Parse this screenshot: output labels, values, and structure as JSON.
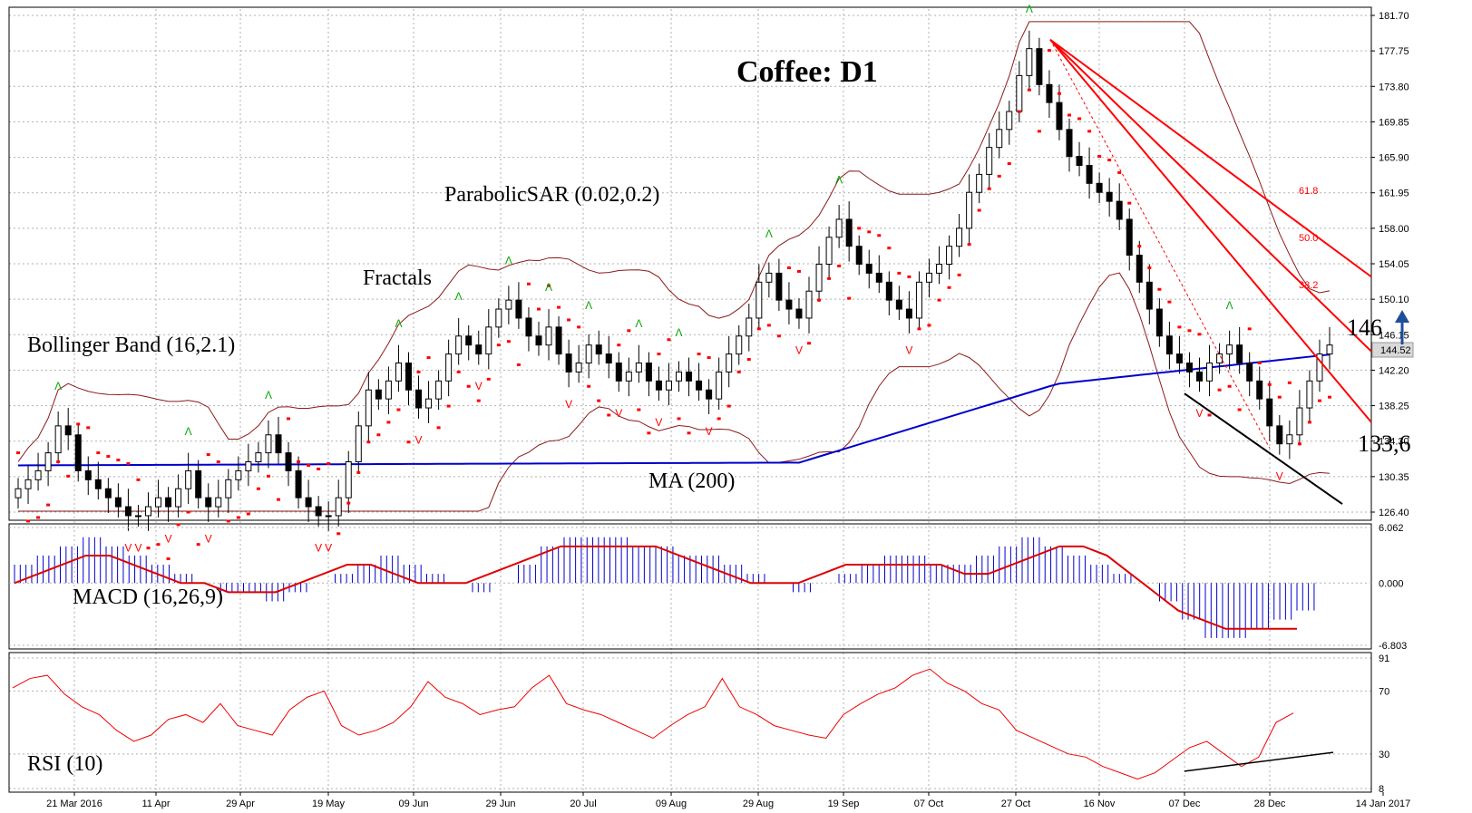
{
  "chart_data": [
    {
      "type": "candlestick",
      "title": "Coffee: D1",
      "instrument": "Coffee",
      "timeframe": "D1",
      "y_ticks": [
        "181.70",
        "177.75",
        "173.80",
        "169.85",
        "165.90",
        "161.95",
        "158.00",
        "154.05",
        "150.10",
        "146.15",
        "142.20",
        "138.25",
        "134.30",
        "130.35",
        "126.40"
      ],
      "ylim": [
        126.4,
        181.7
      ],
      "x_ticks": [
        "21 Mar 2016",
        "11 Apr",
        "29 Apr",
        "19 May",
        "09 Jun",
        "29 Jun",
        "20 Jul",
        "09 Aug",
        "29 Aug",
        "19 Sep",
        "07 Oct",
        "27 Oct",
        "16 Nov",
        "07 Dec",
        "28 Dec",
        "14 Jan 2017"
      ],
      "current_price_label": "144.52",
      "current_price": 144.52,
      "grid": true,
      "annotations": {
        "bollinger": "Bollinger Band (16,2.1)",
        "fractals": "Fractals",
        "sar": "ParabolicSAR (0.02,0.2)",
        "ma": "MA (200)",
        "level_146": "146",
        "level_133": "133,6"
      },
      "fibonacci_labels": [
        "61.8",
        "50.0",
        "38.2"
      ],
      "colors": {
        "ma": "#0000cc",
        "bollinger": "#8b1a1a",
        "sar": "#ff0000",
        "fractal_up": "#00aa00",
        "fractal_down": "#ff0000",
        "trendline": "#ff0000",
        "support": "#000000",
        "arrow": "#1f4e9a"
      },
      "close_approx": [
        129,
        130,
        131,
        133,
        136,
        135,
        131,
        130,
        129,
        128,
        127,
        126,
        126,
        127,
        128,
        127,
        129,
        131,
        128,
        127,
        128,
        130,
        131,
        132,
        133,
        135,
        133,
        131,
        128,
        127,
        126,
        126,
        128,
        132,
        136,
        140,
        139,
        141,
        143,
        140,
        138,
        139,
        141,
        144,
        146,
        145,
        144,
        147,
        149,
        150,
        148,
        146,
        145,
        147,
        144,
        142,
        143,
        145,
        144,
        143,
        141,
        142,
        143,
        141,
        140,
        141,
        142,
        141,
        140,
        139,
        142,
        144,
        146,
        148,
        152,
        153,
        150,
        149,
        148,
        151,
        154,
        157,
        159,
        156,
        154,
        153,
        152,
        150,
        149,
        148,
        152,
        153,
        154,
        156,
        158,
        162,
        164,
        167,
        169,
        171,
        175,
        178,
        174,
        172,
        169,
        166,
        165,
        163,
        162,
        161,
        159,
        155,
        152,
        149,
        146,
        144,
        143,
        142,
        141,
        143,
        144,
        145,
        143,
        141,
        139,
        136,
        134,
        135,
        138,
        141,
        144,
        145
      ]
    },
    {
      "type": "bar+line",
      "title": "MACD (16,26,9)",
      "y_ticks": [
        "6.062",
        "0.000",
        "-6.803"
      ],
      "ylim": [
        -6.803,
        6.062
      ],
      "histogram_approx": [
        2,
        3,
        4,
        5,
        4,
        3,
        2,
        1,
        0,
        -1,
        -1,
        -2,
        -1,
        0,
        1,
        2,
        3,
        2,
        1,
        0,
        -1,
        0,
        2,
        4,
        5,
        5,
        5,
        4,
        4,
        3,
        3,
        2,
        1,
        0,
        -1,
        0,
        1,
        2,
        3,
        3,
        2,
        2,
        3,
        4,
        5,
        4,
        3,
        2,
        1,
        0,
        -2,
        -4,
        -6,
        -6,
        -5,
        -4,
        -3
      ],
      "signal_approx": [
        0,
        1,
        2,
        3,
        3,
        2,
        1,
        0,
        0,
        -1,
        -1,
        -1,
        0,
        1,
        2,
        2,
        1,
        0,
        0,
        0,
        1,
        2,
        3,
        4,
        4,
        4,
        4,
        4,
        3,
        2,
        1,
        0,
        0,
        0,
        1,
        2,
        2,
        2,
        2,
        2,
        1,
        1,
        2,
        3,
        4,
        4,
        3,
        1,
        -1,
        -3,
        -4,
        -5,
        -5,
        -5,
        -5
      ]
    },
    {
      "type": "line",
      "title": "RSI (10)",
      "y_ticks": [
        "91",
        "70",
        "30",
        "8"
      ],
      "ylim": [
        8,
        91
      ],
      "values_approx": [
        72,
        78,
        80,
        68,
        60,
        55,
        45,
        38,
        42,
        52,
        55,
        50,
        62,
        48,
        45,
        42,
        58,
        66,
        70,
        48,
        42,
        45,
        50,
        60,
        76,
        66,
        62,
        55,
        58,
        60,
        72,
        80,
        62,
        58,
        55,
        50,
        45,
        40,
        48,
        55,
        60,
        78,
        60,
        55,
        48,
        45,
        42,
        40,
        55,
        62,
        68,
        72,
        80,
        84,
        75,
        70,
        62,
        58,
        45,
        40,
        35,
        30,
        28,
        22,
        18,
        14,
        18,
        26,
        34,
        38,
        30,
        22,
        28,
        50,
        56
      ]
    }
  ]
}
